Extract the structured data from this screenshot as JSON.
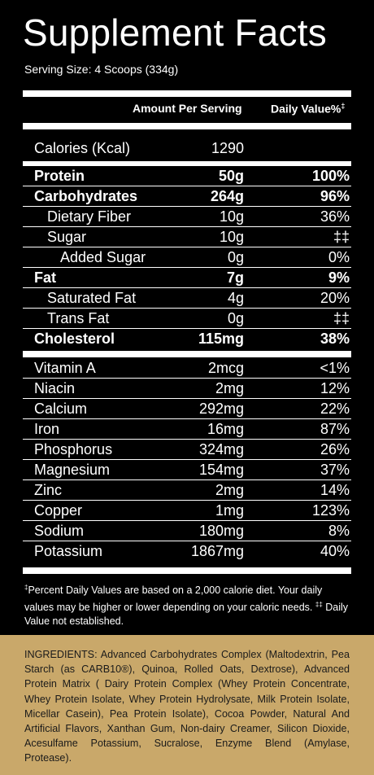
{
  "title": "Supplement Facts",
  "serving_size": "Serving Size: 4 Scoops (334g)",
  "header": {
    "amount": "Amount Per Serving",
    "daily_value": "Daily Value%",
    "dv_mark": "‡"
  },
  "calories": {
    "label": "Calories (Kcal)",
    "amount": "1290"
  },
  "macros": [
    {
      "label": "Protein",
      "amount": "50g",
      "dv": "100%",
      "bold": true,
      "indent": 0
    },
    {
      "label": "Carbohydrates",
      "amount": "264g",
      "dv": "96%",
      "bold": true,
      "indent": 0
    },
    {
      "label": "Dietary Fiber",
      "amount": "10g",
      "dv": "36%",
      "bold": false,
      "indent": 1
    },
    {
      "label": "Sugar",
      "amount": "10g",
      "dv": "‡‡",
      "bold": false,
      "indent": 1
    },
    {
      "label": "Added Sugar",
      "amount": "0g",
      "dv": "0%",
      "bold": false,
      "indent": 2
    },
    {
      "label": "Fat",
      "amount": "7g",
      "dv": "9%",
      "bold": true,
      "indent": 0
    },
    {
      "label": "Saturated Fat",
      "amount": "4g",
      "dv": "20%",
      "bold": false,
      "indent": 1
    },
    {
      "label": "Trans Fat",
      "amount": "0g",
      "dv": "‡‡",
      "bold": false,
      "indent": 1
    },
    {
      "label": "Cholesterol",
      "amount": "115mg",
      "dv": "38%",
      "bold": true,
      "indent": 0
    }
  ],
  "micros": [
    {
      "label": "Vitamin A",
      "amount": "2mcg",
      "dv": "<1%"
    },
    {
      "label": "Niacin",
      "amount": "2mg",
      "dv": "12%"
    },
    {
      "label": "Calcium",
      "amount": "292mg",
      "dv": "22%"
    },
    {
      "label": "Iron",
      "amount": "16mg",
      "dv": "87%"
    },
    {
      "label": "Phosphorus",
      "amount": "324mg",
      "dv": "26%"
    },
    {
      "label": "Magnesium",
      "amount": "154mg",
      "dv": "37%"
    },
    {
      "label": "Zinc",
      "amount": "2mg",
      "dv": "14%"
    },
    {
      "label": "Copper",
      "amount": "1mg",
      "dv": "123%"
    },
    {
      "label": "Sodium",
      "amount": "180mg",
      "dv": "8%"
    },
    {
      "label": "Potassium",
      "amount": "1867mg",
      "dv": "40%"
    }
  ],
  "footnote": {
    "mark1": "‡",
    "text1": "Percent Daily Values are based on a 2,000 calorie diet. Your daily values may be higher or lower depending on your caloric needs.",
    "mark2": "‡‡",
    "text2": " Daily Value not established."
  },
  "ingredients": "INGREDIENTS: Advanced Carbohydrates Complex (Maltodextrin, Pea Starch (as CARB10®), Quinoa, Rolled Oats, Dextrose), Advanced Protein Matrix ( Dairy Protein Complex (Whey Protein Concentrate, Whey Protein Isolate, Whey Protein Hydrolysate, Milk Protein Isolate, Micellar Casein), Pea Protein Isolate), Cocoa Powder, Natural And Artificial Flavors, Xanthan Gum, Non-dairy Creamer, Silicon Dioxide, Acesulfame Potassium, Sucralose, Enzyme Blend (Amylase, Protease).",
  "colors": {
    "panel": "#000000",
    "ingredients_bg": "#c9a86a"
  }
}
